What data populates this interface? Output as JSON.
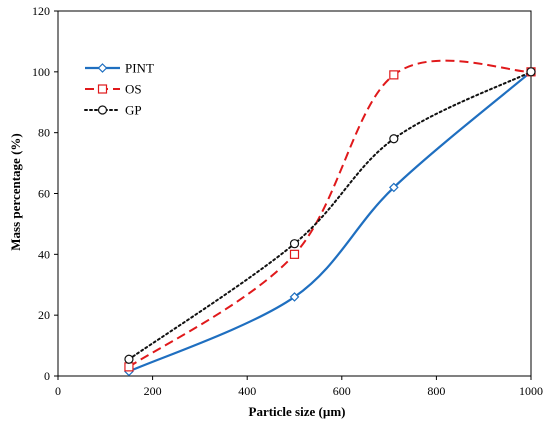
{
  "chart_data": {
    "type": "line",
    "xlabel": "Particle size (µm)",
    "ylabel": "Mass percentage (%)",
    "xlim": [
      0,
      1000
    ],
    "ylim": [
      0,
      120
    ],
    "xticks": [
      0,
      200,
      400,
      600,
      800,
      1000
    ],
    "yticks": [
      0,
      20,
      40,
      60,
      80,
      100,
      120
    ],
    "grid": false,
    "legend_position": "top-left",
    "series": [
      {
        "name": "PINT",
        "color": "#1f6fc0",
        "dash": "solid",
        "marker": "diamond",
        "x": [
          150,
          500,
          710,
          1000
        ],
        "y": [
          1.5,
          26,
          62,
          100
        ]
      },
      {
        "name": "OS",
        "color": "#e0191b",
        "dash": "dashed",
        "marker": "square",
        "x": [
          150,
          500,
          710,
          1000
        ],
        "y": [
          3,
          40,
          99,
          100
        ]
      },
      {
        "name": "GP",
        "color": "#111111",
        "dash": "dotted",
        "marker": "circle",
        "x": [
          150,
          500,
          710,
          1000
        ],
        "y": [
          5.5,
          43.5,
          78,
          100
        ]
      }
    ]
  }
}
